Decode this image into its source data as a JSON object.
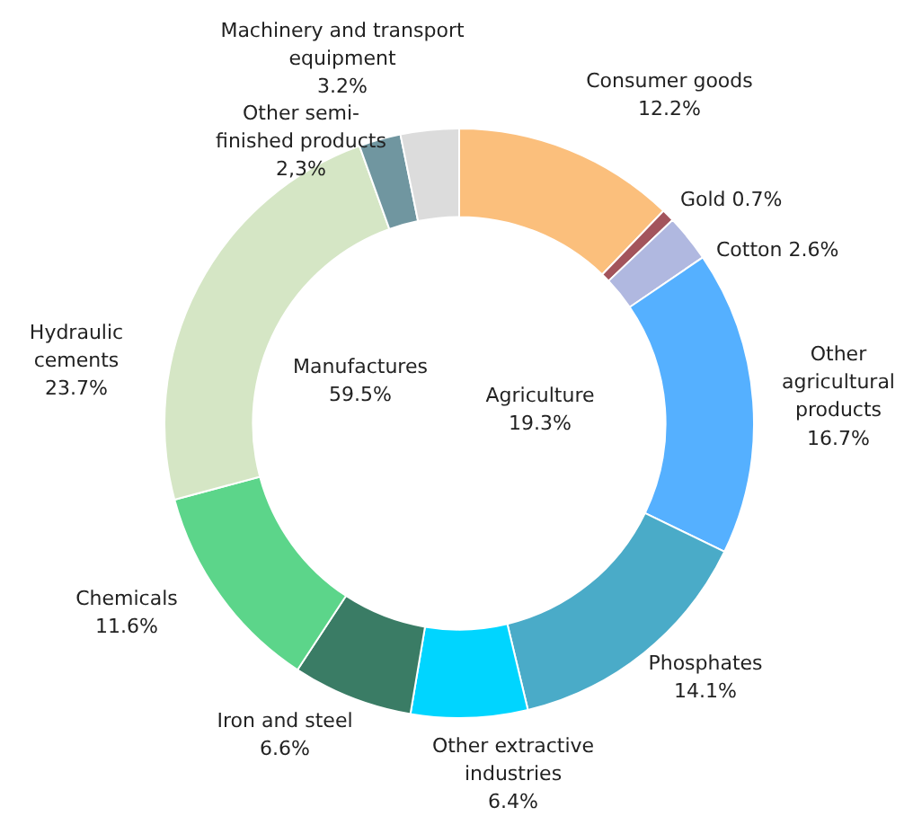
{
  "chart_data": {
    "type": "donut",
    "categories": [
      "Consumer goods",
      "Gold",
      "Cotton",
      "Other\nagricultural\nproducts",
      "Phosphates",
      "Other extractive\nindustries",
      "Iron and steel",
      "Chemicals",
      "Hydraulic\ncements",
      "Other semi-\nfinished products",
      "Machinery and transport\nequipment"
    ],
    "values": [
      12.2,
      0.7,
      2.6,
      16.7,
      14.1,
      6.4,
      6.6,
      11.6,
      23.7,
      2.3,
      3.2
    ],
    "value_labels": [
      "12.2%",
      "0.7%",
      "2.6%",
      "16.7%",
      "14.1%",
      "6.4%",
      "6.6%",
      "11.6%",
      "23.7%",
      "2,3%",
      "3.2%"
    ],
    "colors": [
      "#fbbf7c",
      "#a3545c",
      "#b0b8e0",
      "#55b0ff",
      "#4aabc8",
      "#00d5ff",
      "#3a7c65",
      "#5cd58a",
      "#d5e6c5",
      "#7096a0",
      "#dcdcdc"
    ],
    "annotations": [
      "Manufactures\n59.5%",
      "Agriculture\n19.3%"
    ]
  }
}
